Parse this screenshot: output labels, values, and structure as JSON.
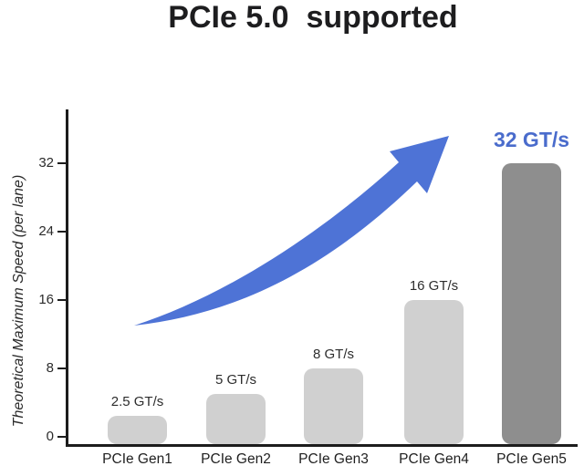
{
  "title": "PCIe 5.0  supported",
  "chart_data": {
    "type": "bar",
    "title": "PCIe 5.0 supported",
    "categories": [
      "PCIe Gen1",
      "PCIe Gen2",
      "PCIe Gen3",
      "PCIe Gen4",
      "PCIe Gen5"
    ],
    "values": [
      2.5,
      5,
      8,
      16,
      32
    ],
    "value_labels": [
      "2.5 GT/s",
      "5 GT/s",
      "8 GT/s",
      "16 GT/s",
      "32 GT/s"
    ],
    "unit": "GT/s",
    "xlabel": "",
    "ylabel": "Theoretical Maximum Speed (per lane)",
    "yticks": [
      0,
      8,
      16,
      24,
      32
    ],
    "ytick_labels": [
      "0",
      "8",
      "16",
      "24",
      "32"
    ],
    "ylim": [
      0,
      39
    ],
    "grid": false,
    "legend": "none",
    "highlight_index": 4,
    "highlight_label": "32 GT/s",
    "annotation": "upward curved growth arrow from Gen1 toward Gen5",
    "colors": {
      "bar": "#d0d0d0",
      "bar_highlight": "#8e8e8e",
      "arrow": "#4e73d6",
      "highlight_text": "#4a6ccc",
      "axis": "#1c1c1c"
    }
  }
}
